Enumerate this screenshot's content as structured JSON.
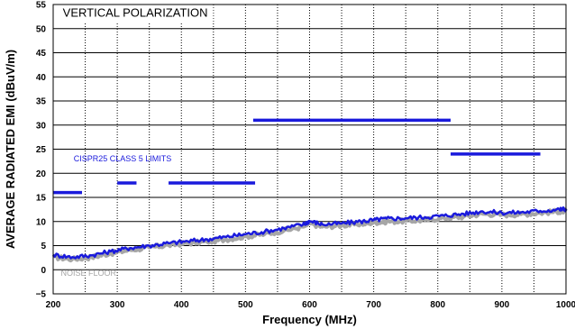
{
  "chart_data": {
    "type": "line",
    "xlabel": "Frequency (MHz)",
    "ylabel": "AVERAGE RADIATED EMI (dBuV/m)",
    "xlim": [
      200,
      1000
    ],
    "ylim": [
      -5,
      55
    ],
    "x_ticks": [
      200,
      300,
      400,
      500,
      600,
      700,
      800,
      900,
      1000
    ],
    "y_ticks": [
      -5,
      0,
      5,
      10,
      15,
      20,
      25,
      30,
      35,
      40,
      45,
      50,
      55
    ],
    "grid": true,
    "annotations": [
      {
        "text": "VERTICAL POLARIZATION",
        "x": 215,
        "y": 52.5,
        "color": "#000000"
      },
      {
        "text": "CISPR25 CLASS 5 LIMITS",
        "x": 232,
        "y": 22.5,
        "color": "#1a1adc"
      },
      {
        "text": "NOISE FLOOR",
        "x": 212,
        "y": -1.3,
        "color": "#a6a6a6"
      }
    ],
    "limit_lines": {
      "name": "CISPR25 CLASS 5 LIMITS",
      "color": "#1a1adc",
      "segments": [
        {
          "x": [
            200,
            245
          ],
          "y": 16
        },
        {
          "x": [
            300,
            330
          ],
          "y": 18
        },
        {
          "x": [
            380,
            515
          ],
          "y": 18
        },
        {
          "x": [
            512,
            820
          ],
          "y": 31
        },
        {
          "x": [
            820,
            960
          ],
          "y": 24
        }
      ]
    },
    "series": [
      {
        "color": "#a6a6a6",
        "x": [
          200,
          230,
          260,
          290,
          320,
          350,
          380,
          410,
          440,
          470,
          500,
          530,
          560,
          590,
          600,
          620,
          650,
          680,
          700,
          720,
          750,
          780,
          810,
          840,
          870,
          900,
          930,
          960,
          990,
          1000
        ],
        "y": [
          2.6,
          2.2,
          2.6,
          3.4,
          4.1,
          4.6,
          5.1,
          5.5,
          5.8,
          6.3,
          6.9,
          7.4,
          8.1,
          8.9,
          9.6,
          8.9,
          9.2,
          9.5,
          9.8,
          10.0,
          10.1,
          10.3,
          10.7,
          11.0,
          11.6,
          11.4,
          11.5,
          11.8,
          12.1,
          12.2
        ]
      },
      {
        "color": "#1a1adc",
        "x": [
          200,
          230,
          260,
          290,
          320,
          350,
          380,
          410,
          440,
          470,
          500,
          530,
          560,
          590,
          600,
          620,
          650,
          680,
          700,
          720,
          750,
          780,
          810,
          840,
          870,
          900,
          930,
          960,
          990,
          1000
        ],
        "y": [
          3.1,
          2.6,
          3.0,
          3.8,
          4.5,
          5.0,
          5.5,
          5.9,
          6.3,
          6.8,
          7.4,
          7.9,
          8.6,
          9.4,
          10.1,
          9.4,
          9.6,
          10.0,
          10.3,
          10.6,
          10.7,
          10.9,
          11.2,
          11.6,
          12.1,
          11.8,
          11.9,
          12.2,
          12.5,
          12.6
        ]
      }
    ]
  }
}
